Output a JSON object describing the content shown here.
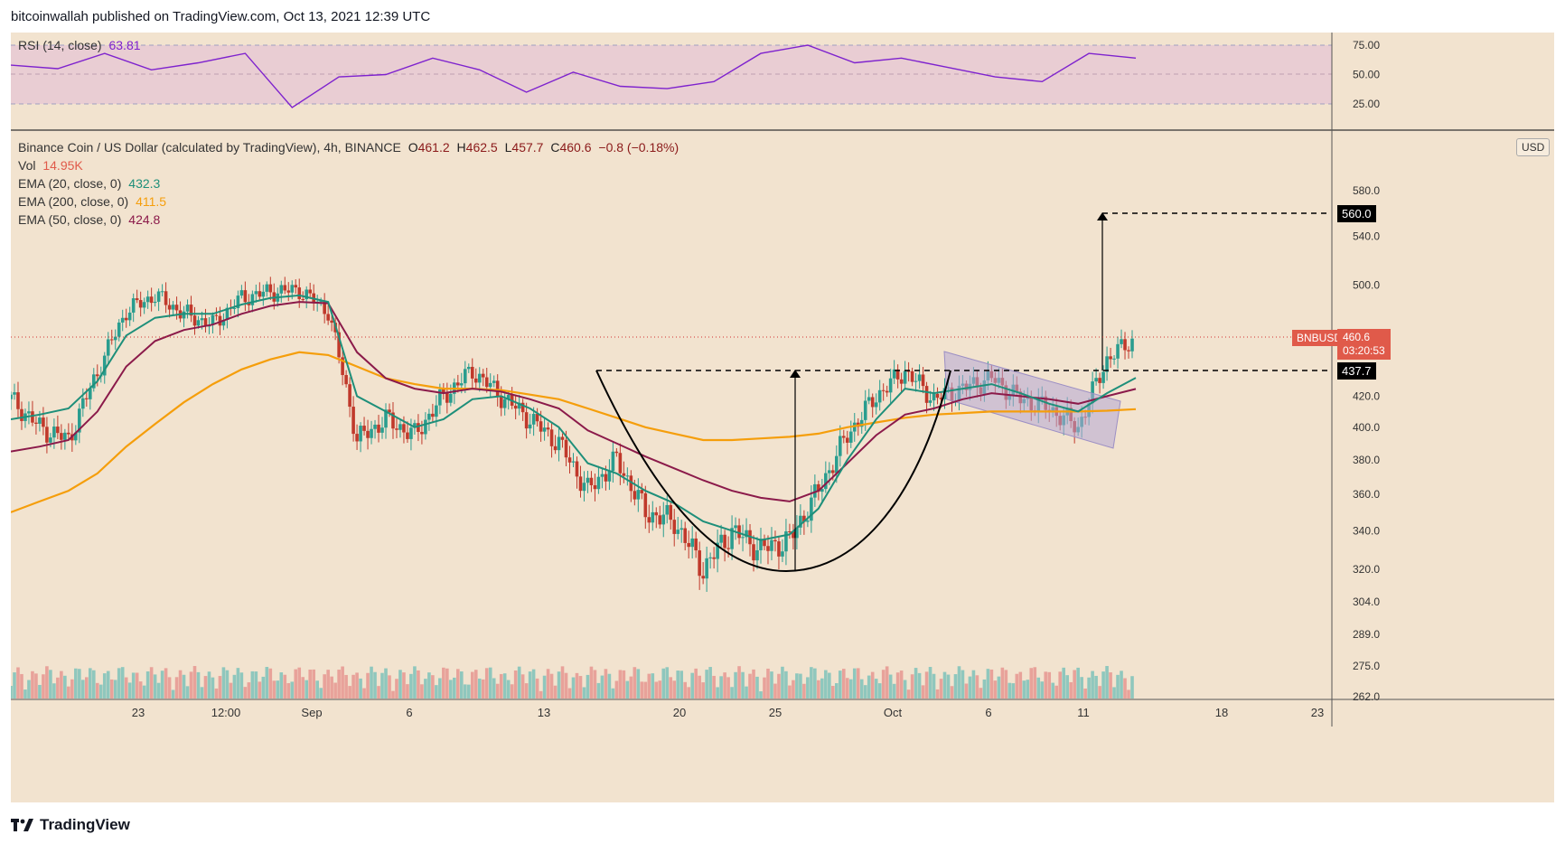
{
  "header": {
    "publisher": "bitcoinwallah published on TradingView.com, Oct 13, 2021 12:39 UTC"
  },
  "rsi_pane": {
    "label": "RSI (14, close)",
    "value": "63.81",
    "ticks": [
      "75.00",
      "50.00",
      "25.00"
    ]
  },
  "main_pane": {
    "title": "Binance Coin / US Dollar (calculated by TradingView), 4h, BINANCE",
    "ohlc": {
      "o_label": "O",
      "o": "461.2",
      "h_label": "H",
      "h": "462.5",
      "l_label": "L",
      "l": "457.7",
      "c_label": "C",
      "c": "460.6",
      "change": "−0.8 (−0.18%)"
    },
    "vol": {
      "label": "Vol",
      "value": "14.95K"
    },
    "ema20": {
      "label": "EMA (20, close, 0)",
      "value": "432.3"
    },
    "ema200": {
      "label": "EMA (200, close, 0)",
      "value": "411.5"
    },
    "ema50": {
      "label": "EMA (50, close, 0)",
      "value": "424.8"
    },
    "currency": "USD",
    "symbol_tag": "BNBUSD",
    "last_price": "460.6",
    "countdown": "03:20:53",
    "target_label": "560.0",
    "neckline_label": "437.7",
    "y_ticks": [
      "580.0",
      "540.0",
      "500.0",
      "420.0",
      "400.0",
      "380.0",
      "360.0",
      "340.0",
      "320.0",
      "304.0",
      "289.0",
      "275.0",
      "262.0"
    ],
    "x_ticks": [
      "23",
      "12:00",
      "Sep",
      "6",
      "13",
      "20",
      "25",
      "Oct",
      "6",
      "11",
      "18",
      "23"
    ]
  },
  "colors": {
    "background": "#f2e3cf",
    "rsi_band": "#e9cdd3",
    "rsi_line": "#7e22ce",
    "ema20": "#1e8f7a",
    "ema50": "#8b1a4a",
    "ema200": "#f59e0b",
    "up_candle": "#2a9d8f",
    "down_candle": "#c0392b",
    "channel": "#b4a7d6"
  },
  "footer": {
    "brand": "TradingView"
  },
  "chart_data": [
    {
      "type": "line",
      "title": "RSI (14, close)",
      "x": [
        "Aug 20",
        "Aug 23",
        "Aug 26",
        "Sep 1",
        "Sep 4",
        "Sep 7",
        "Sep 8",
        "Sep 10",
        "Sep 13",
        "Sep 15",
        "Sep 18",
        "Sep 20",
        "Sep 22",
        "Sep 24",
        "Sep 26",
        "Sep 28",
        "Sep 30",
        "Oct 2",
        "Oct 4",
        "Oct 6",
        "Oct 8",
        "Oct 10",
        "Oct 11",
        "Oct 12",
        "Oct 13"
      ],
      "series": [
        {
          "name": "RSI",
          "values": [
            58,
            55,
            68,
            54,
            60,
            68,
            22,
            48,
            50,
            64,
            54,
            35,
            52,
            40,
            38,
            44,
            68,
            75,
            60,
            64,
            56,
            48,
            44,
            68,
            64
          ]
        }
      ],
      "ylim": [
        0,
        100
      ],
      "y_ticks": [
        75,
        50,
        25
      ]
    },
    {
      "type": "line",
      "title": "Binance Coin / US Dollar (calculated by TradingView), 4h, BINANCE",
      "x": [
        "Aug 20",
        "Aug 21",
        "Aug 22",
        "Aug 23",
        "Aug 25",
        "Aug 27",
        "Aug 29",
        "Aug 31",
        "Sep 2",
        "Sep 4",
        "Sep 6",
        "Sep 7",
        "Sep 8",
        "Sep 10",
        "Sep 12",
        "Sep 14",
        "Sep 15",
        "Sep 17",
        "Sep 19",
        "Sep 20",
        "Sep 21",
        "Sep 23",
        "Sep 24",
        "Sep 25",
        "Sep 26",
        "Sep 27",
        "Sep 28",
        "Sep 29",
        "Sep 30",
        "Oct 1",
        "Oct 2",
        "Oct 3",
        "Oct 4",
        "Oct 5",
        "Oct 7",
        "Oct 8",
        "Oct 10",
        "Oct 11",
        "Oct 12",
        "Oct 13"
      ],
      "series": [
        {
          "name": "Price (close)",
          "values": [
            418,
            400,
            392,
            436,
            480,
            492,
            478,
            470,
            490,
            495,
            496,
            480,
            392,
            405,
            395,
            420,
            437,
            420,
            405,
            390,
            362,
            380,
            350,
            345,
            320,
            340,
            330,
            335,
            362,
            395,
            420,
            437,
            418,
            425,
            432,
            418,
            412,
            400,
            445,
            460.6
          ]
        },
        {
          "name": "EMA (20, close, 0)",
          "values": [
            405,
            408,
            412,
            430,
            462,
            475,
            478,
            478,
            485,
            490,
            492,
            487,
            420,
            410,
            400,
            405,
            418,
            420,
            412,
            400,
            378,
            372,
            362,
            355,
            345,
            340,
            335,
            338,
            352,
            380,
            405,
            425,
            422,
            425,
            428,
            422,
            415,
            410,
            422,
            432.3
          ]
        },
        {
          "name": "EMA (50, close, 0)",
          "values": [
            385,
            388,
            392,
            410,
            440,
            458,
            466,
            470,
            478,
            484,
            487,
            486,
            450,
            432,
            425,
            422,
            425,
            423,
            418,
            412,
            398,
            390,
            382,
            375,
            368,
            362,
            358,
            356,
            362,
            378,
            395,
            408,
            412,
            418,
            422,
            420,
            418,
            415,
            420,
            424.8
          ]
        },
        {
          "name": "EMA (200, close, 0)",
          "values": [
            350,
            356,
            362,
            372,
            388,
            402,
            416,
            428,
            438,
            445,
            450,
            448,
            440,
            432,
            428,
            425,
            425,
            424,
            421,
            418,
            412,
            406,
            400,
            396,
            392,
            392,
            393,
            394,
            396,
            400,
            403,
            406,
            408,
            409,
            410,
            410,
            410,
            410,
            410.5,
            411.5
          ]
        }
      ],
      "annotations": [
        "cup and handle",
        "neckline 437.7",
        "target 560.0",
        "descending channel"
      ],
      "ylim": [
        260,
        600
      ],
      "y_ticks": [
        580,
        540,
        500,
        420,
        400,
        380,
        360,
        340,
        320,
        304,
        289,
        275,
        262
      ]
    }
  ]
}
